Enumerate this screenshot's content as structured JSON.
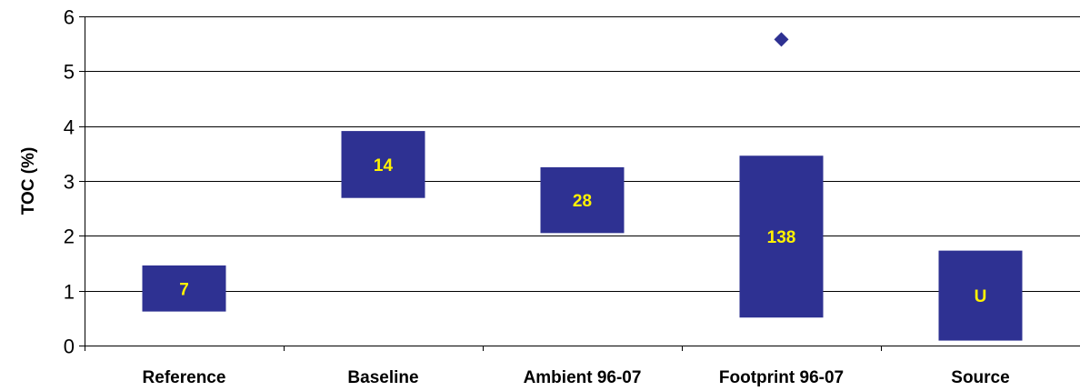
{
  "chart_data": {
    "type": "bar",
    "subtype": "floating-range",
    "ylabel": "TOC (%)",
    "ylim": [
      0,
      6
    ],
    "yticks": [
      "0",
      "1",
      "2",
      "3",
      "4",
      "5",
      "6"
    ],
    "grid": true,
    "categories": [
      "Reference",
      "Baseline",
      "Ambient 96-07",
      "Footprint 96-07",
      "Source"
    ],
    "ranges": [
      {
        "category": "Reference",
        "low": 0.62,
        "high": 1.46,
        "label": "7"
      },
      {
        "category": "Baseline",
        "low": 2.69,
        "high": 3.91,
        "label": "14"
      },
      {
        "category": "Ambient 96-07",
        "low": 2.05,
        "high": 3.25,
        "label": "28"
      },
      {
        "category": "Footprint 96-07",
        "low": 0.51,
        "high": 3.46,
        "label": "138"
      },
      {
        "category": "Source",
        "low": 0.09,
        "high": 1.73,
        "label": "U"
      }
    ],
    "outliers": [
      {
        "category": "Footprint 96-07",
        "value": 5.58
      }
    ],
    "colors": {
      "bar": "#2E3192",
      "bar_label": "#FFF200",
      "outlier": "#2E3192",
      "grid": "#000000",
      "axis": "#000000"
    }
  }
}
